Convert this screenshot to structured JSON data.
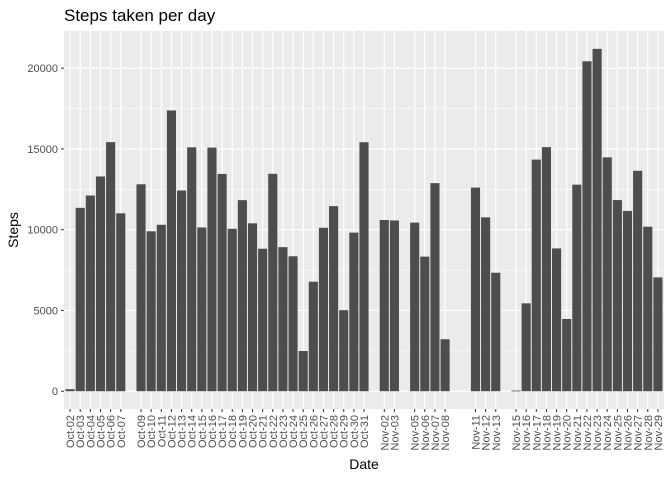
{
  "chart_data": {
    "type": "bar",
    "title": "Steps taken per day",
    "xlabel": "Date",
    "ylabel": "Steps",
    "ylim": [
      -1100,
      22300
    ],
    "y_ticks": [
      0,
      5000,
      10000,
      15000,
      20000
    ],
    "y_tick_labels": [
      "0",
      "5000",
      "10000",
      "15000",
      "20000"
    ],
    "grid": true,
    "panel_background": "#ebebeb",
    "grid_color": "#ffffff",
    "bar_color": "#4d4d4d",
    "categories": [
      "Oct-02",
      "Oct-03",
      "Oct-04",
      "Oct-05",
      "Oct-06",
      "Oct-07",
      "Oct-09",
      "Oct-10",
      "Oct-11",
      "Oct-12",
      "Oct-13",
      "Oct-14",
      "Oct-15",
      "Oct-16",
      "Oct-17",
      "Oct-18",
      "Oct-19",
      "Oct-20",
      "Oct-21",
      "Oct-22",
      "Oct-23",
      "Oct-24",
      "Oct-25",
      "Oct-26",
      "Oct-27",
      "Oct-28",
      "Oct-29",
      "Oct-30",
      "Oct-31",
      "Nov-02",
      "Nov-03",
      "Nov-05",
      "Nov-06",
      "Nov-07",
      "Nov-08",
      "Nov-11",
      "Nov-12",
      "Nov-13",
      "Nov-15",
      "Nov-16",
      "Nov-17",
      "Nov-18",
      "Nov-19",
      "Nov-20",
      "Nov-21",
      "Nov-22",
      "Nov-23",
      "Nov-24",
      "Nov-25",
      "Nov-26",
      "Nov-27",
      "Nov-28",
      "Nov-29"
    ],
    "values": [
      126,
      11352,
      12116,
      13294,
      15420,
      11015,
      12811,
      9900,
      10304,
      17382,
      12426,
      15098,
      10139,
      15084,
      13452,
      10056,
      11829,
      10395,
      8821,
      13460,
      8918,
      8355,
      2492,
      6778,
      10119,
      11458,
      5018,
      9819,
      15414,
      10600,
      10571,
      10439,
      8334,
      12883,
      3219,
      12608,
      10765,
      7336,
      41,
      5441,
      14339,
      15110,
      8841,
      4472,
      12787,
      20427,
      21194,
      14478,
      11834,
      11162,
      13646,
      10183,
      7047
    ]
  }
}
